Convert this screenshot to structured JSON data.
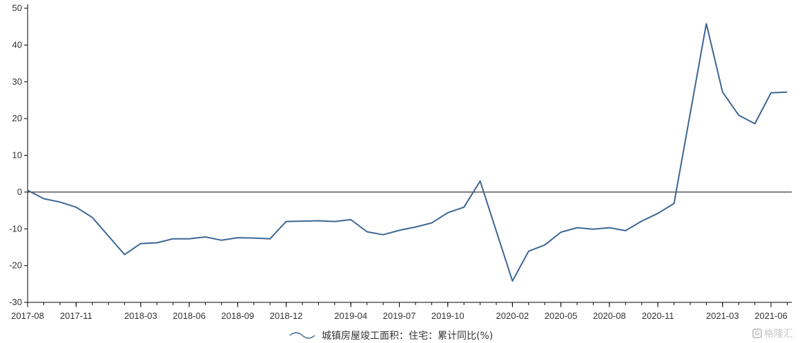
{
  "chart_data": {
    "type": "line",
    "title": "",
    "xlabel": "",
    "ylabel": "",
    "ylim": [
      -30,
      50
    ],
    "yticks": [
      -30,
      -20,
      -10,
      0,
      10,
      20,
      30,
      40,
      50
    ],
    "xtick_labels": [
      "2017-08",
      "2017-11",
      "2018-03",
      "2018-06",
      "2018-09",
      "2018-12",
      "2019-04",
      "2019-07",
      "2019-10",
      "2020-02",
      "2020-05",
      "2020-08",
      "2020-11",
      "2021-03",
      "2021-06"
    ],
    "x": [
      "2017-08",
      "2017-09",
      "2017-10",
      "2017-11",
      "2017-12",
      "2018-02",
      "2018-03",
      "2018-04",
      "2018-05",
      "2018-06",
      "2018-07",
      "2018-08",
      "2018-09",
      "2018-10",
      "2018-11",
      "2018-12",
      "2019-02",
      "2019-03",
      "2019-04",
      "2019-05",
      "2019-06",
      "2019-07",
      "2019-08",
      "2019-09",
      "2019-10",
      "2019-11",
      "2019-12",
      "2020-02",
      "2020-03",
      "2020-04",
      "2020-05",
      "2020-06",
      "2020-07",
      "2020-08",
      "2020-09",
      "2020-10",
      "2020-11",
      "2020-12",
      "2021-02",
      "2021-03",
      "2021-04",
      "2021-05",
      "2021-06",
      "2021-07"
    ],
    "series": [
      {
        "name": "城镇房屋竣工面积：住宅：累计同比(%)",
        "color": "#3b6694",
        "values": [
          0.5,
          -1.8,
          -2.7,
          -4.1,
          -6.9,
          -17.0,
          -14.0,
          -13.8,
          -12.7,
          -12.7,
          -12.2,
          -13.1,
          -12.4,
          -12.5,
          -12.7,
          -8.0,
          -7.8,
          -8.0,
          -7.5,
          -10.8,
          -11.6,
          -10.4,
          -9.5,
          -8.4,
          -5.6,
          -4.1,
          3.0,
          -24.2,
          -16.1,
          -14.4,
          -10.9,
          -9.7,
          -10.1,
          -9.7,
          -10.5,
          -7.9,
          -5.8,
          -3.1,
          45.8,
          27.2,
          20.9,
          18.6,
          27.0,
          27.2
        ]
      }
    ],
    "zero_line": true,
    "legend_position": "bottom-center",
    "grid": false
  },
  "watermark": {
    "logo_letter": "G",
    "text": "格隆汇"
  }
}
